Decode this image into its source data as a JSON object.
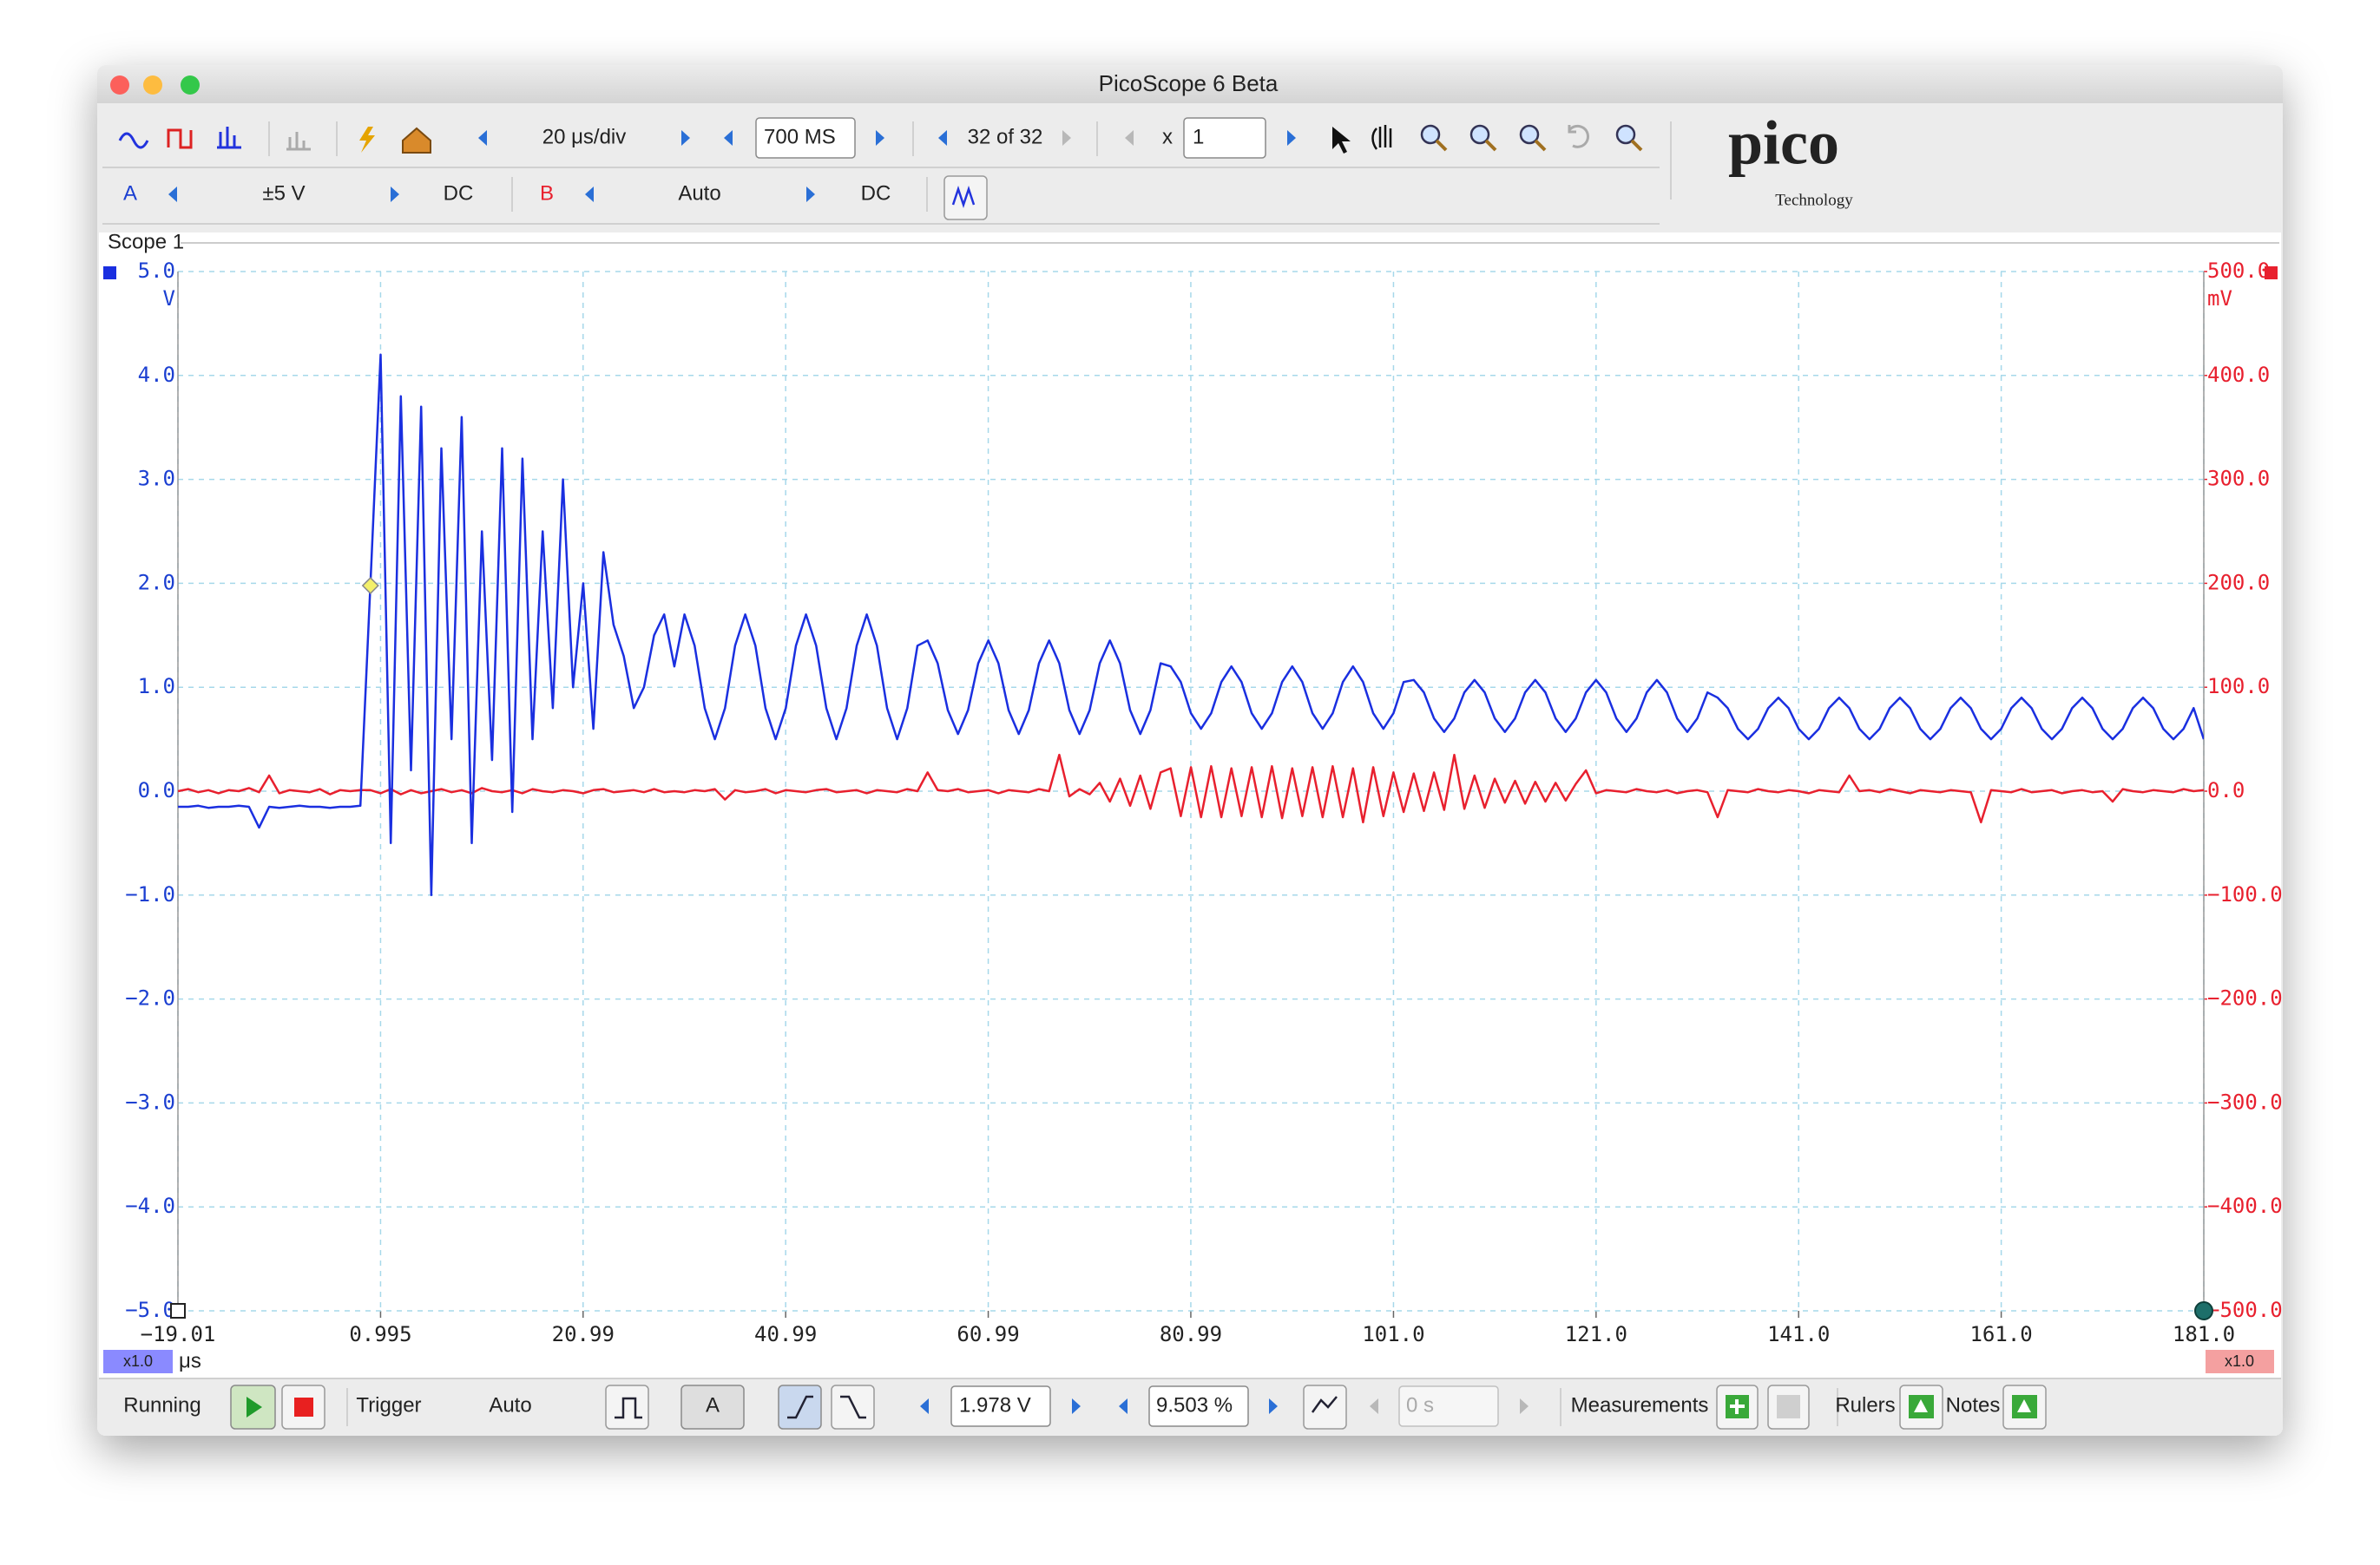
{
  "window": {
    "title": "PicoScope 6 Beta"
  },
  "toolbar": {
    "timebase": "20 μs/div",
    "samples": "700 MS",
    "buffer": "32 of 32",
    "zoom_label": "x",
    "zoom": "1",
    "channel_a": {
      "range": "±5 V",
      "coupling": "DC"
    },
    "channel_b": {
      "range": "Auto",
      "coupling": "DC"
    }
  },
  "logo": {
    "name": "pico",
    "tagline": "Technology"
  },
  "scope": {
    "title": "Scope 1",
    "scale_badges": [
      "x1.0",
      "x1.0"
    ]
  },
  "chart_data": {
    "type": "line",
    "x_unit": "μs",
    "y_unit": "V",
    "y2_unit": "mV",
    "grid": true,
    "xlim": [
      -19.01,
      181.0
    ],
    "xticks": [
      {
        "value": -19.01,
        "label": "−19.01"
      },
      0.995,
      20.99,
      40.99,
      60.99,
      80.99,
      {
        "value": 101,
        "label": "101.0"
      },
      {
        "value": 121,
        "label": "121.0"
      },
      {
        "value": 141,
        "label": "141.0"
      },
      {
        "value": 161,
        "label": "161.0"
      },
      {
        "value": 181,
        "label": "181.0"
      }
    ],
    "ylim": [
      -5,
      5
    ],
    "yticks": [
      {
        "value": 5,
        "label": "5.0"
      },
      {
        "value": 4,
        "label": "4.0"
      },
      {
        "value": 3,
        "label": "3.0"
      },
      {
        "value": 2,
        "label": "2.0"
      },
      {
        "value": 1,
        "label": "1.0"
      },
      {
        "value": 0,
        "label": "0.0"
      },
      {
        "value": -1,
        "label": "−1.0"
      },
      {
        "value": -2,
        "label": "−2.0"
      },
      {
        "value": -3,
        "label": "−3.0"
      },
      {
        "value": -4,
        "label": "−4.0"
      },
      {
        "value": -5,
        "label": "−5.0"
      }
    ],
    "y2lim": [
      -500,
      500
    ],
    "y2ticks": [
      {
        "value": 500,
        "label": "500.0"
      },
      {
        "value": 400,
        "label": "400.0"
      },
      {
        "value": 300,
        "label": "300.0"
      },
      {
        "value": 200,
        "label": "200.0"
      },
      {
        "value": 100,
        "label": "100.0"
      },
      {
        "value": 0,
        "label": "0.0"
      },
      {
        "value": -100,
        "label": "−100.0"
      },
      {
        "value": -200,
        "label": "−200.0"
      },
      {
        "value": -300,
        "label": "−300.0"
      },
      {
        "value": -400,
        "label": "−400.0"
      },
      {
        "value": -500,
        "label": "−500.0"
      }
    ],
    "x": [
      -19,
      -18,
      -17,
      -16,
      -15,
      -14,
      -13,
      -12,
      -11,
      -10,
      -9,
      -8,
      -7,
      -6,
      -5,
      -4,
      -3,
      -2,
      -1,
      0,
      1,
      2,
      3,
      4,
      5,
      6,
      7,
      8,
      9,
      10,
      11,
      12,
      13,
      14,
      15,
      16,
      17,
      18,
      19,
      20,
      21,
      22,
      23,
      24,
      25,
      26,
      27,
      28,
      29,
      30,
      31,
      32,
      33,
      34,
      35,
      36,
      37,
      38,
      39,
      40,
      41,
      42,
      43,
      44,
      45,
      46,
      47,
      48,
      49,
      50,
      51,
      52,
      53,
      54,
      55,
      56,
      57,
      58,
      59,
      60,
      61,
      62,
      63,
      64,
      65,
      66,
      67,
      68,
      69,
      70,
      71,
      72,
      73,
      74,
      75,
      76,
      77,
      78,
      79,
      80,
      81,
      82,
      83,
      84,
      85,
      86,
      87,
      88,
      89,
      90,
      91,
      92,
      93,
      94,
      95,
      96,
      97,
      98,
      99,
      100,
      101,
      102,
      103,
      104,
      105,
      106,
      107,
      108,
      109,
      110,
      111,
      112,
      113,
      114,
      115,
      116,
      117,
      118,
      119,
      120,
      121,
      122,
      123,
      124,
      125,
      126,
      127,
      128,
      129,
      130,
      131,
      132,
      133,
      134,
      135,
      136,
      137,
      138,
      139,
      140,
      141,
      142,
      143,
      144,
      145,
      146,
      147,
      148,
      149,
      150,
      151,
      152,
      153,
      154,
      155,
      156,
      157,
      158,
      159,
      160,
      161,
      162,
      163,
      164,
      165,
      166,
      167,
      168,
      169,
      170,
      171,
      172,
      173,
      174,
      175,
      176,
      177,
      178,
      179,
      180,
      181
    ],
    "series": [
      {
        "name": "A",
        "color": "#1a2fe0",
        "values": [
          -0.15,
          -0.15,
          -0.14,
          -0.16,
          -0.15,
          -0.15,
          -0.14,
          -0.15,
          -0.35,
          -0.15,
          -0.16,
          -0.15,
          -0.14,
          -0.15,
          -0.15,
          -0.16,
          -0.15,
          -0.15,
          -0.14,
          2.0,
          4.2,
          -0.5,
          3.8,
          0.2,
          3.7,
          -1.0,
          3.3,
          0.5,
          3.6,
          -0.5,
          2.5,
          0.3,
          3.3,
          -0.2,
          3.2,
          0.5,
          2.5,
          0.8,
          3.0,
          1.0,
          2.0,
          0.6,
          2.3,
          1.6,
          1.3,
          0.8,
          1.0,
          1.5,
          1.7,
          1.2,
          1.7,
          1.4,
          0.8,
          0.5,
          0.8,
          1.4,
          1.7,
          1.4,
          0.8,
          0.5,
          0.8,
          1.4,
          1.7,
          1.4,
          0.8,
          0.5,
          0.8,
          1.4,
          1.7,
          1.4,
          0.8,
          0.5,
          0.8,
          1.4,
          1.45,
          1.23,
          0.78,
          0.55,
          0.78,
          1.23,
          1.45,
          1.23,
          0.78,
          0.55,
          0.78,
          1.23,
          1.45,
          1.23,
          0.78,
          0.55,
          0.78,
          1.23,
          1.45,
          1.23,
          0.78,
          0.55,
          0.78,
          1.23,
          1.2,
          1.05,
          0.75,
          0.6,
          0.75,
          1.05,
          1.2,
          1.05,
          0.75,
          0.6,
          0.75,
          1.05,
          1.2,
          1.05,
          0.75,
          0.6,
          0.75,
          1.05,
          1.2,
          1.05,
          0.75,
          0.6,
          0.75,
          1.05,
          1.07,
          0.95,
          0.7,
          0.57,
          0.7,
          0.95,
          1.07,
          0.95,
          0.7,
          0.57,
          0.7,
          0.95,
          1.07,
          0.95,
          0.7,
          0.57,
          0.7,
          0.95,
          1.07,
          0.95,
          0.7,
          0.57,
          0.7,
          0.95,
          1.07,
          0.95,
          0.7,
          0.57,
          0.7,
          0.95,
          0.9,
          0.8,
          0.6,
          0.5,
          0.6,
          0.8,
          0.9,
          0.8,
          0.6,
          0.5,
          0.6,
          0.8,
          0.9,
          0.8,
          0.6,
          0.5,
          0.6,
          0.8,
          0.9,
          0.8,
          0.6,
          0.5,
          0.6,
          0.8,
          0.9,
          0.8,
          0.6,
          0.5,
          0.6,
          0.8,
          0.9,
          0.8,
          0.6,
          0.5,
          0.6,
          0.8,
          0.9,
          0.8,
          0.6,
          0.5,
          0.6,
          0.8,
          0.9,
          0.8,
          0.6,
          0.5,
          0.6,
          0.8,
          0.5
        ]
      },
      {
        "name": "B",
        "color": "#e8202e",
        "axis": "y2",
        "values": [
          0,
          2,
          -1,
          1,
          -2,
          1,
          0,
          3,
          -1,
          15,
          -2,
          1,
          0,
          -1,
          2,
          -3,
          1,
          0,
          1,
          1,
          -2,
          2,
          -3,
          1,
          -2,
          0,
          2,
          -1,
          1,
          -2,
          3,
          0,
          -1,
          1,
          -2,
          2,
          0,
          -1,
          1,
          0,
          -2,
          1,
          2,
          -1,
          0,
          1,
          -1,
          2,
          -1,
          0,
          -1,
          1,
          0,
          2,
          -8,
          1,
          -1,
          0,
          2,
          -2,
          1,
          0,
          -1,
          1,
          2,
          -1,
          0,
          1,
          -2,
          1,
          0,
          -1,
          2,
          0,
          18,
          1,
          0,
          2,
          -1,
          0,
          1,
          -2,
          1,
          0,
          -1,
          2,
          0,
          35,
          -5,
          2,
          -3,
          8,
          -10,
          12,
          -14,
          15,
          -17,
          18,
          22,
          -24,
          23,
          -25,
          24,
          -25,
          22,
          -24,
          23,
          -25,
          24,
          -26,
          22,
          -24,
          23,
          -25,
          24,
          -25,
          22,
          -30,
          23,
          -24,
          18,
          -20,
          17,
          -19,
          18,
          -18,
          35,
          -17,
          15,
          -16,
          12,
          -11,
          10,
          -12,
          9,
          -10,
          8,
          -9,
          7,
          20,
          -2,
          1,
          0,
          -1,
          2,
          0,
          -1,
          1,
          -2,
          0,
          1,
          -1,
          -25,
          1,
          0,
          -1,
          2,
          0,
          -1,
          1,
          0,
          -2,
          1,
          0,
          -1,
          15,
          0,
          1,
          -1,
          2,
          0,
          -2,
          1,
          0,
          -1,
          1,
          0,
          -1,
          -30,
          1,
          0,
          -1,
          2,
          -1,
          0,
          1,
          -2,
          0,
          1,
          -1,
          0,
          -10,
          2,
          0,
          -1,
          1,
          0,
          -1,
          2,
          0,
          1
        ]
      }
    ]
  },
  "toolbar_bottom": {
    "status": "Running",
    "trigger_label": "Trigger",
    "trigger_mode": "Auto",
    "trigger_level": {
      "value": 1.978,
      "label": "1.978 V"
    },
    "pre_trigger": {
      "value": 9.503,
      "label": "9.503 %"
    },
    "delay": "0 s",
    "measurements": "Measurements",
    "rulers": "Rulers",
    "notes": "Notes"
  }
}
